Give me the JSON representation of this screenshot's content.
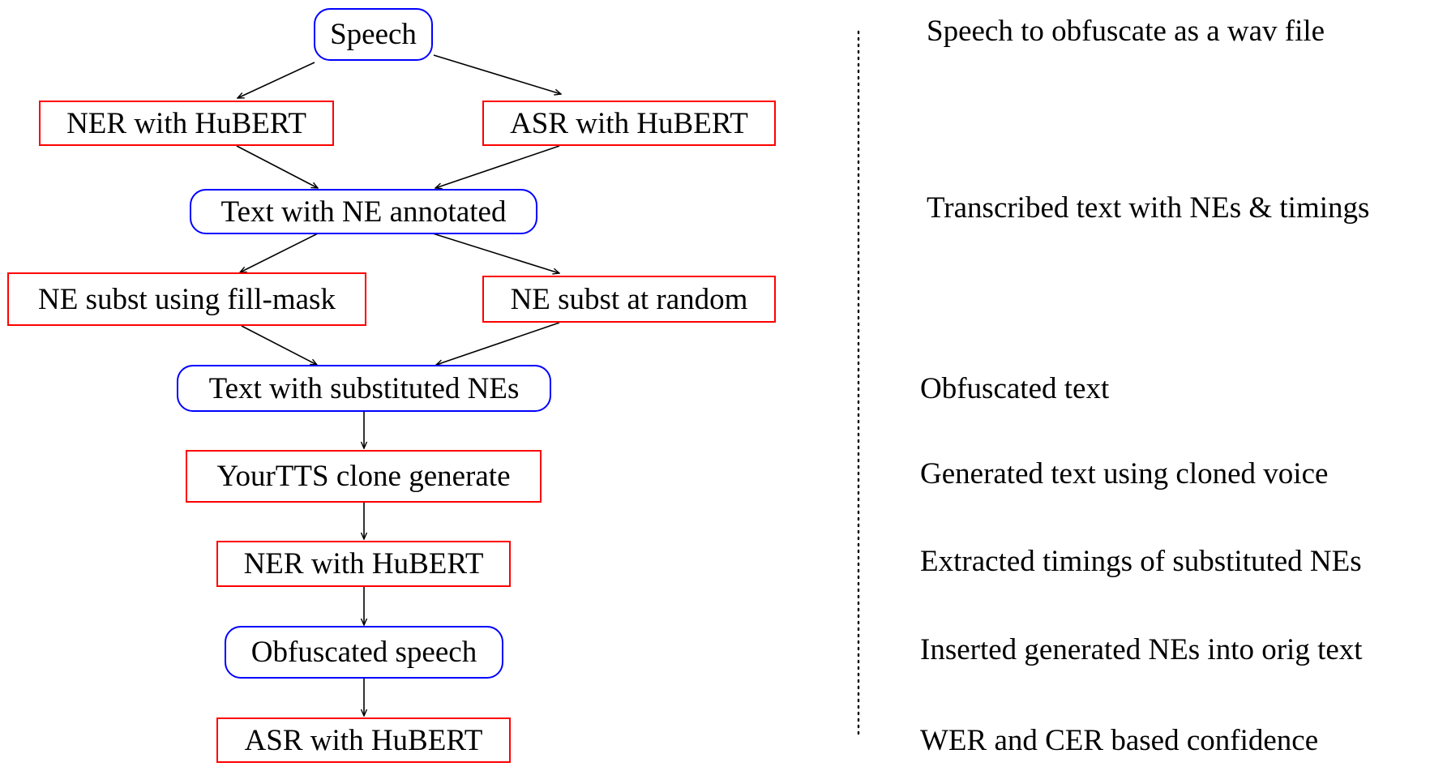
{
  "flow": {
    "speech": "Speech",
    "ner_1": "NER with HuBERT",
    "asr_1": "ASR with HuBERT",
    "text_ne_annotated": "Text with NE annotated",
    "ne_subst_fillmask": "NE subst using fill-mask",
    "ne_subst_random": "NE subst at random",
    "text_substituted": "Text with substituted NEs",
    "yourtts": "YourTTS clone generate",
    "ner_2": "NER with HuBERT",
    "obfuscated_speech": "Obfuscated speech",
    "asr_2": "ASR with HuBERT"
  },
  "notes": {
    "n1": "Speech to obfuscate as a wav file",
    "n2": "Transcribed text with NEs & timings",
    "n3": "Obfuscated text",
    "n4": "Generated text using cloned voice",
    "n5": "Extracted timings of substituted NEs",
    "n6": "Inserted generated NEs into orig text",
    "n7": "WER and CER based confidence"
  },
  "colors": {
    "data_border": "#0000ff",
    "process_border": "#ff0000",
    "edge": "#000000"
  }
}
